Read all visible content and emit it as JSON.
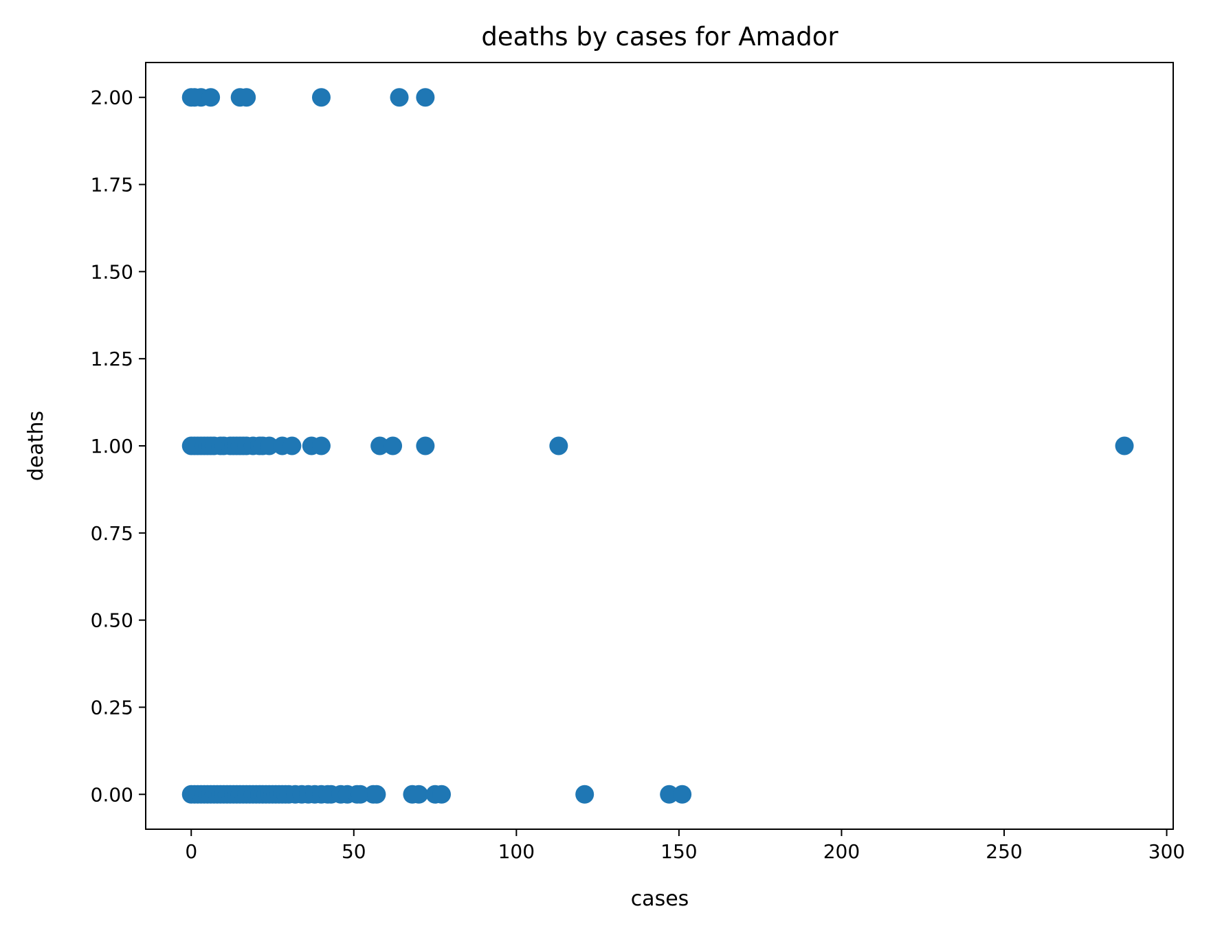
{
  "chart_data": {
    "type": "scatter",
    "title": "deaths by cases for Amador",
    "xlabel": "cases",
    "ylabel": "deaths",
    "xlim": [
      -14,
      302
    ],
    "ylim": [
      -0.1,
      2.1
    ],
    "xticks": [
      0,
      50,
      100,
      150,
      200,
      250,
      300
    ],
    "yticks": [
      0.0,
      0.25,
      0.5,
      0.75,
      1.0,
      1.25,
      1.5,
      1.75,
      2.0
    ],
    "xtick_labels": [
      "0",
      "50",
      "100",
      "150",
      "200",
      "250",
      "300"
    ],
    "ytick_labels": [
      "0.00",
      "0.25",
      "0.50",
      "0.75",
      "1.00",
      "1.25",
      "1.50",
      "1.75",
      "2.00"
    ],
    "grid": false,
    "marker_color": "#1f77b4",
    "points": [
      {
        "x": 0,
        "y": 2
      },
      {
        "x": 1,
        "y": 2
      },
      {
        "x": 3,
        "y": 2
      },
      {
        "x": 6,
        "y": 2
      },
      {
        "x": 15,
        "y": 2
      },
      {
        "x": 17,
        "y": 2
      },
      {
        "x": 40,
        "y": 2
      },
      {
        "x": 64,
        "y": 2
      },
      {
        "x": 72,
        "y": 2
      },
      {
        "x": 0,
        "y": 1
      },
      {
        "x": 1,
        "y": 1
      },
      {
        "x": 2,
        "y": 1
      },
      {
        "x": 3,
        "y": 1
      },
      {
        "x": 4,
        "y": 1
      },
      {
        "x": 5,
        "y": 1
      },
      {
        "x": 6,
        "y": 1
      },
      {
        "x": 7,
        "y": 1
      },
      {
        "x": 9,
        "y": 1
      },
      {
        "x": 10,
        "y": 1
      },
      {
        "x": 12,
        "y": 1
      },
      {
        "x": 13,
        "y": 1
      },
      {
        "x": 14,
        "y": 1
      },
      {
        "x": 15,
        "y": 1
      },
      {
        "x": 16,
        "y": 1
      },
      {
        "x": 17,
        "y": 1
      },
      {
        "x": 19,
        "y": 1
      },
      {
        "x": 21,
        "y": 1
      },
      {
        "x": 22,
        "y": 1
      },
      {
        "x": 24,
        "y": 1
      },
      {
        "x": 28,
        "y": 1
      },
      {
        "x": 31,
        "y": 1
      },
      {
        "x": 37,
        "y": 1
      },
      {
        "x": 40,
        "y": 1
      },
      {
        "x": 58,
        "y": 1
      },
      {
        "x": 62,
        "y": 1
      },
      {
        "x": 72,
        "y": 1
      },
      {
        "x": 113,
        "y": 1
      },
      {
        "x": 287,
        "y": 1
      },
      {
        "x": 0,
        "y": 0
      },
      {
        "x": 1,
        "y": 0
      },
      {
        "x": 2,
        "y": 0
      },
      {
        "x": 3,
        "y": 0
      },
      {
        "x": 4,
        "y": 0
      },
      {
        "x": 5,
        "y": 0
      },
      {
        "x": 6,
        "y": 0
      },
      {
        "x": 7,
        "y": 0
      },
      {
        "x": 8,
        "y": 0
      },
      {
        "x": 9,
        "y": 0
      },
      {
        "x": 10,
        "y": 0
      },
      {
        "x": 11,
        "y": 0
      },
      {
        "x": 12,
        "y": 0
      },
      {
        "x": 13,
        "y": 0
      },
      {
        "x": 14,
        "y": 0
      },
      {
        "x": 15,
        "y": 0
      },
      {
        "x": 16,
        "y": 0
      },
      {
        "x": 17,
        "y": 0
      },
      {
        "x": 18,
        "y": 0
      },
      {
        "x": 19,
        "y": 0
      },
      {
        "x": 20,
        "y": 0
      },
      {
        "x": 21,
        "y": 0
      },
      {
        "x": 22,
        "y": 0
      },
      {
        "x": 23,
        "y": 0
      },
      {
        "x": 24,
        "y": 0
      },
      {
        "x": 25,
        "y": 0
      },
      {
        "x": 26,
        "y": 0
      },
      {
        "x": 27,
        "y": 0
      },
      {
        "x": 28,
        "y": 0
      },
      {
        "x": 29,
        "y": 0
      },
      {
        "x": 30,
        "y": 0
      },
      {
        "x": 32,
        "y": 0
      },
      {
        "x": 34,
        "y": 0
      },
      {
        "x": 36,
        "y": 0
      },
      {
        "x": 38,
        "y": 0
      },
      {
        "x": 40,
        "y": 0
      },
      {
        "x": 42,
        "y": 0
      },
      {
        "x": 43,
        "y": 0
      },
      {
        "x": 46,
        "y": 0
      },
      {
        "x": 48,
        "y": 0
      },
      {
        "x": 51,
        "y": 0
      },
      {
        "x": 52,
        "y": 0
      },
      {
        "x": 56,
        "y": 0
      },
      {
        "x": 57,
        "y": 0
      },
      {
        "x": 68,
        "y": 0
      },
      {
        "x": 70,
        "y": 0
      },
      {
        "x": 75,
        "y": 0
      },
      {
        "x": 77,
        "y": 0
      },
      {
        "x": 121,
        "y": 0
      },
      {
        "x": 147,
        "y": 0
      },
      {
        "x": 151,
        "y": 0
      }
    ]
  }
}
